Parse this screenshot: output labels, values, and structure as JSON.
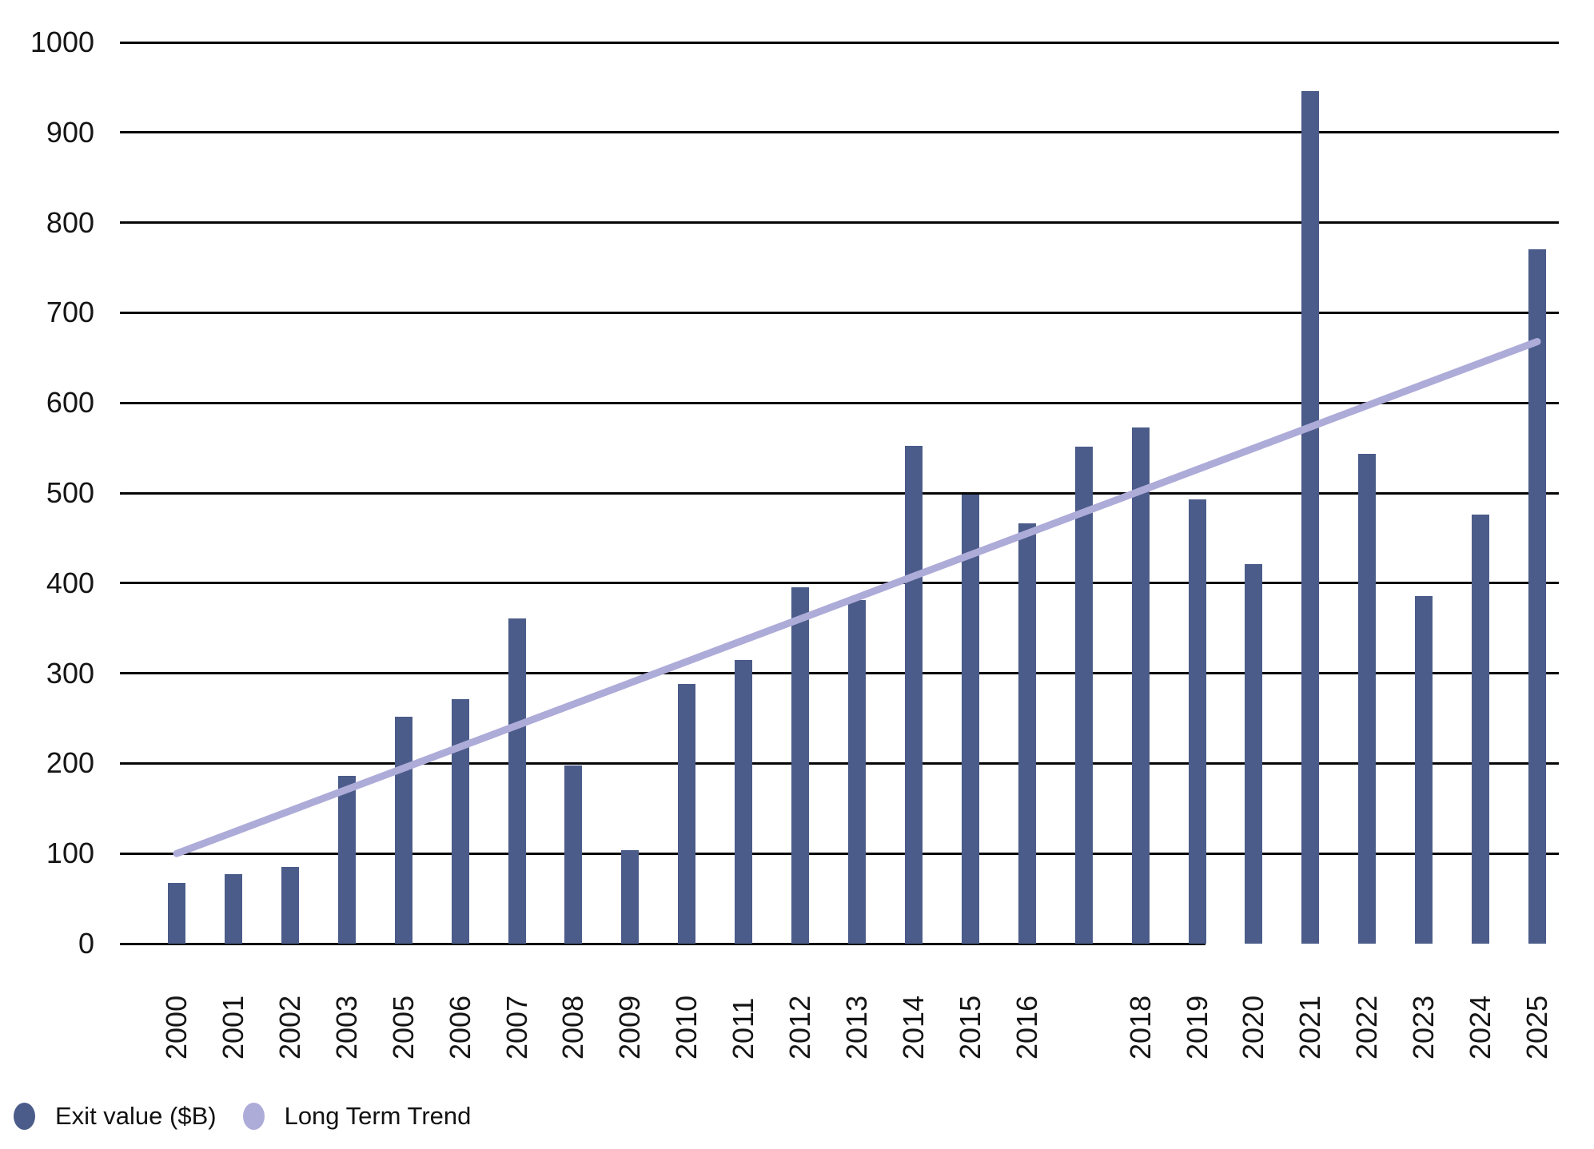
{
  "chart_data": {
    "type": "bar",
    "title": "",
    "xlabel": "",
    "ylabel": "",
    "ylim": [
      0,
      1000
    ],
    "yticks": [
      0,
      100,
      200,
      300,
      400,
      500,
      600,
      700,
      800,
      900,
      1000
    ],
    "grid": true,
    "legend_position": "bottom-left",
    "categories": [
      "2000",
      "2001",
      "2002",
      "2003",
      "2005",
      "2006",
      "2007",
      "2008",
      "2009",
      "2010",
      "2011",
      "2012",
      "2013",
      "2014",
      "2015",
      "2016",
      "",
      "2018",
      "2019",
      "2020",
      "2021",
      "2022",
      "2023",
      "2024",
      "2025"
    ],
    "series": [
      {
        "name": "Exit value ($B)",
        "type": "bar",
        "color": "#4b5c8a",
        "values": [
          67,
          77,
          85,
          186,
          252,
          271,
          361,
          198,
          104,
          288,
          315,
          395,
          381,
          552,
          498,
          466,
          551,
          573,
          493,
          421,
          946,
          543,
          386,
          476,
          770
        ]
      },
      {
        "name": "Long Term Trend",
        "type": "line",
        "color": "#adabd8",
        "trend_start": 100,
        "trend_end": 668
      }
    ]
  },
  "legend": {
    "items": [
      {
        "label": "Exit value ($B)",
        "color": "#4b5c8a"
      },
      {
        "label": "Long Term Trend",
        "color": "#adabd8"
      }
    ]
  }
}
